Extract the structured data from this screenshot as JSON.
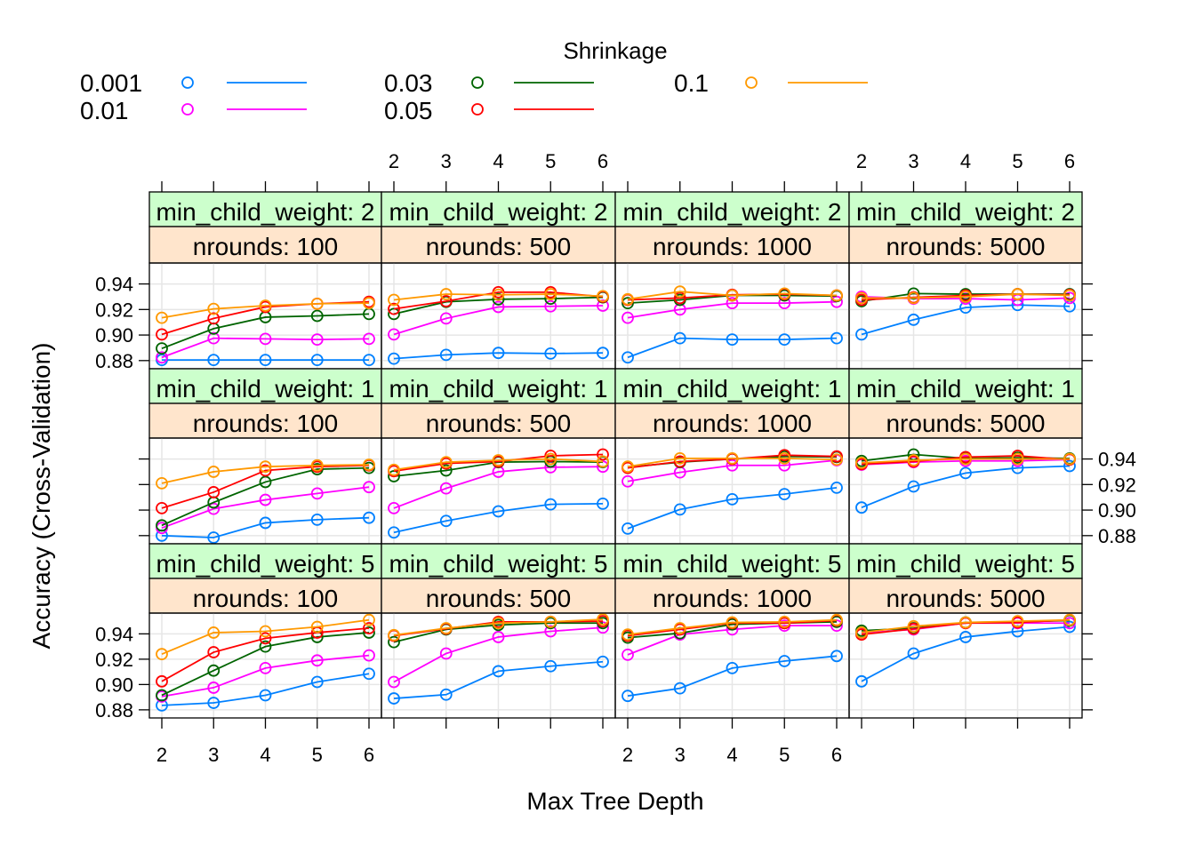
{
  "chart_data": {
    "type": "line",
    "xlabel": "Max Tree Depth",
    "ylabel": "Accuracy (Cross-Validation)",
    "x": [
      2,
      3,
      4,
      5,
      6
    ],
    "xticks": [
      "2",
      "3",
      "4",
      "5",
      "6"
    ],
    "yticks": [
      "0.88",
      "0.90",
      "0.92",
      "0.94"
    ],
    "ylim": [
      0.875,
      0.955
    ],
    "grid": true,
    "legend": {
      "title": "Shrinkage",
      "placement": "top",
      "entries": [
        {
          "label": "0.001",
          "color": "#0080ff"
        },
        {
          "label": "0.01",
          "color": "#ff00ff"
        },
        {
          "label": "0.03",
          "color": "#006400"
        },
        {
          "label": "0.05",
          "color": "#ff0000"
        },
        {
          "label": "0.1",
          "color": "#ff9900"
        }
      ]
    },
    "strip_colors": {
      "top": "#ccffcc",
      "bottom": "#ffe5cc"
    },
    "nrounds_labels": [
      "nrounds:  100",
      "nrounds:  500",
      "nrounds: 1000",
      "nrounds: 5000"
    ],
    "weight_labels": [
      "min_child_weight: 2",
      "min_child_weight: 1",
      "min_child_weight: 5"
    ],
    "panels": [
      [
        {
          "series": [
            [
              0.8805,
              0.8805,
              0.8805,
              0.8805,
              0.8805
            ],
            [
              0.8825,
              0.8975,
              0.897,
              0.8965,
              0.897
            ],
            [
              0.8895,
              0.905,
              0.914,
              0.915,
              0.9165
            ],
            [
              0.9005,
              0.913,
              0.922,
              0.9245,
              0.926
            ],
            [
              0.9135,
              0.9205,
              0.923,
              0.9245,
              0.925
            ]
          ]
        },
        {
          "series": [
            [
              0.8815,
              0.8845,
              0.886,
              0.8855,
              0.886
            ],
            [
              0.9005,
              0.913,
              0.922,
              0.9225,
              0.923
            ],
            [
              0.9165,
              0.926,
              0.928,
              0.9285,
              0.9295
            ],
            [
              0.9205,
              0.9265,
              0.9335,
              0.9335,
              0.93
            ],
            [
              0.9275,
              0.932,
              0.9315,
              0.932,
              0.9305
            ]
          ]
        },
        {
          "series": [
            [
              0.8825,
              0.8975,
              0.8965,
              0.8965,
              0.8975
            ],
            [
              0.9135,
              0.92,
              0.925,
              0.925,
              0.926
            ],
            [
              0.925,
              0.9275,
              0.931,
              0.931,
              0.9305
            ],
            [
              0.9275,
              0.929,
              0.9315,
              0.932,
              0.931
            ],
            [
              0.928,
              0.934,
              0.931,
              0.9325,
              0.931
            ]
          ]
        },
        {
          "series": [
            [
              0.9005,
              0.912,
              0.9215,
              0.9235,
              0.9225
            ],
            [
              0.93,
              0.9285,
              0.9285,
              0.9275,
              0.929
            ],
            [
              0.9265,
              0.9325,
              0.932,
              0.932,
              0.932
            ],
            [
              0.9275,
              0.9295,
              0.931,
              0.932,
              0.9315
            ],
            [
              0.929,
              0.929,
              0.93,
              0.932,
              0.931
            ]
          ]
        }
      ],
      [
        {
          "series": [
            [
              0.88,
              0.8785,
              0.89,
              0.8925,
              0.894
            ],
            [
              0.886,
              0.901,
              0.908,
              0.913,
              0.918
            ],
            [
              0.888,
              0.906,
              0.922,
              0.932,
              0.933
            ],
            [
              0.9015,
              0.914,
              0.931,
              0.934,
              0.935
            ],
            [
              0.921,
              0.93,
              0.934,
              0.935,
              0.9355
            ]
          ]
        },
        {
          "series": [
            [
              0.8825,
              0.8915,
              0.899,
              0.9045,
              0.905
            ],
            [
              0.9015,
              0.917,
              0.93,
              0.9335,
              0.934
            ],
            [
              0.9265,
              0.931,
              0.9375,
              0.938,
              0.9375
            ],
            [
              0.9305,
              0.9365,
              0.938,
              0.9425,
              0.9435
            ],
            [
              0.9315,
              0.9375,
              0.939,
              0.94,
              0.938
            ]
          ]
        },
        {
          "series": [
            [
              0.8855,
              0.9005,
              0.9085,
              0.9125,
              0.9175
            ],
            [
              0.9225,
              0.9295,
              0.935,
              0.935,
              0.939
            ],
            [
              0.9335,
              0.9375,
              0.94,
              0.942,
              0.9415
            ],
            [
              0.933,
              0.938,
              0.94,
              0.943,
              0.942
            ],
            [
              0.934,
              0.9405,
              0.9405,
              0.9405,
              0.9395
            ]
          ]
        },
        {
          "series": [
            [
              0.902,
              0.9185,
              0.929,
              0.933,
              0.9345
            ],
            [
              0.9355,
              0.9375,
              0.9385,
              0.9385,
              0.9395
            ],
            [
              0.9385,
              0.9435,
              0.9405,
              0.941,
              0.9405
            ],
            [
              0.936,
              0.938,
              0.9415,
              0.9425,
              0.9395
            ],
            [
              0.937,
              0.939,
              0.94,
              0.94,
              0.94
            ]
          ]
        }
      ],
      [
        {
          "series": [
            [
              0.8835,
              0.8855,
              0.8915,
              0.902,
              0.9085
            ],
            [
              0.8905,
              0.8975,
              0.913,
              0.919,
              0.923
            ],
            [
              0.8915,
              0.911,
              0.93,
              0.9375,
              0.941
            ],
            [
              0.9025,
              0.9255,
              0.9365,
              0.941,
              0.9445
            ],
            [
              0.924,
              0.941,
              0.942,
              0.9455,
              0.951
            ]
          ]
        },
        {
          "series": [
            [
              0.889,
              0.892,
              0.9105,
              0.9145,
              0.918
            ],
            [
              0.902,
              0.9245,
              0.9375,
              0.942,
              0.945
            ],
            [
              0.9335,
              0.9435,
              0.947,
              0.9485,
              0.9485
            ],
            [
              0.9385,
              0.944,
              0.9495,
              0.9495,
              0.95
            ],
            [
              0.939,
              0.9445,
              0.9485,
              0.9495,
              0.9515
            ]
          ]
        },
        {
          "series": [
            [
              0.891,
              0.897,
              0.913,
              0.9185,
              0.9225
            ],
            [
              0.9235,
              0.9395,
              0.9435,
              0.9465,
              0.9465
            ],
            [
              0.937,
              0.9405,
              0.9475,
              0.9485,
              0.9495
            ],
            [
              0.9385,
              0.9435,
              0.9485,
              0.9485,
              0.9505
            ],
            [
              0.9395,
              0.9445,
              0.949,
              0.9495,
              0.951
            ]
          ]
        },
        {
          "series": [
            [
              0.9025,
              0.9245,
              0.9375,
              0.942,
              0.9455
            ],
            [
              0.9405,
              0.9435,
              0.9485,
              0.9485,
              0.9485
            ],
            [
              0.9425,
              0.9445,
              0.949,
              0.9495,
              0.9505
            ],
            [
              0.9395,
              0.944,
              0.9485,
              0.949,
              0.951
            ],
            [
              0.941,
              0.946,
              0.949,
              0.95,
              0.951
            ]
          ]
        }
      ]
    ]
  }
}
